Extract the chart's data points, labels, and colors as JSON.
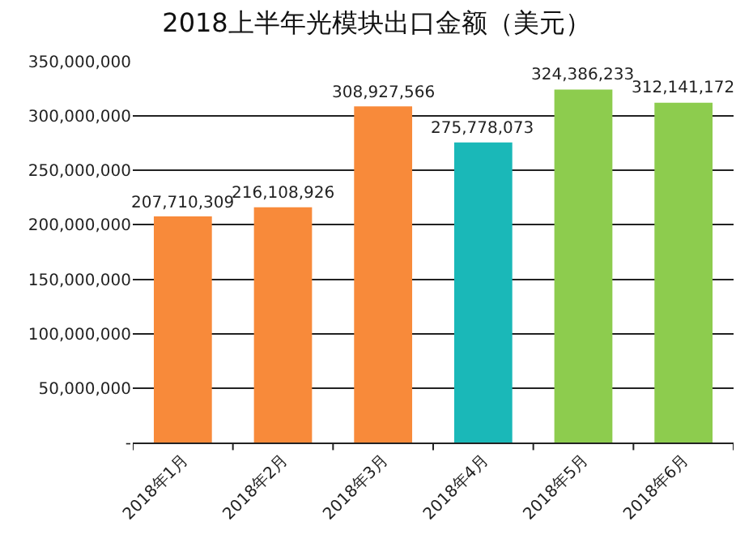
{
  "chart_data": {
    "type": "bar",
    "title": "2018上半年光模块出口金额（美元）",
    "categories": [
      "2018年1月",
      "2018年2月",
      "2018年3月",
      "2018年4月",
      "2018年5月",
      "2018年6月"
    ],
    "values": [
      207710309,
      216108926,
      308927566,
      275778073,
      324386233,
      312141172
    ],
    "colors": [
      "#f88a3a",
      "#f88a3a",
      "#f88a3a",
      "#1ab8b8",
      "#8dcc4e",
      "#8dcc4e"
    ],
    "value_labels": [
      "207,710,309",
      "216,108,926",
      "308,927,566",
      "275,778,073",
      "324,386,233",
      "312,141,172"
    ],
    "ylim": [
      0,
      350000000
    ],
    "yticks": [
      {
        "value": 0,
        "label": "-"
      },
      {
        "value": 50000000,
        "label": "50,000,000"
      },
      {
        "value": 100000000,
        "label": "100,000,000"
      },
      {
        "value": 150000000,
        "label": "150,000,000"
      },
      {
        "value": 200000000,
        "label": "200,000,000"
      },
      {
        "value": 250000000,
        "label": "250,000,000"
      },
      {
        "value": 300000000,
        "label": "300,000,000"
      },
      {
        "value": 350000000,
        "label": "350,000,000"
      }
    ],
    "grid": "y",
    "legend": false
  }
}
